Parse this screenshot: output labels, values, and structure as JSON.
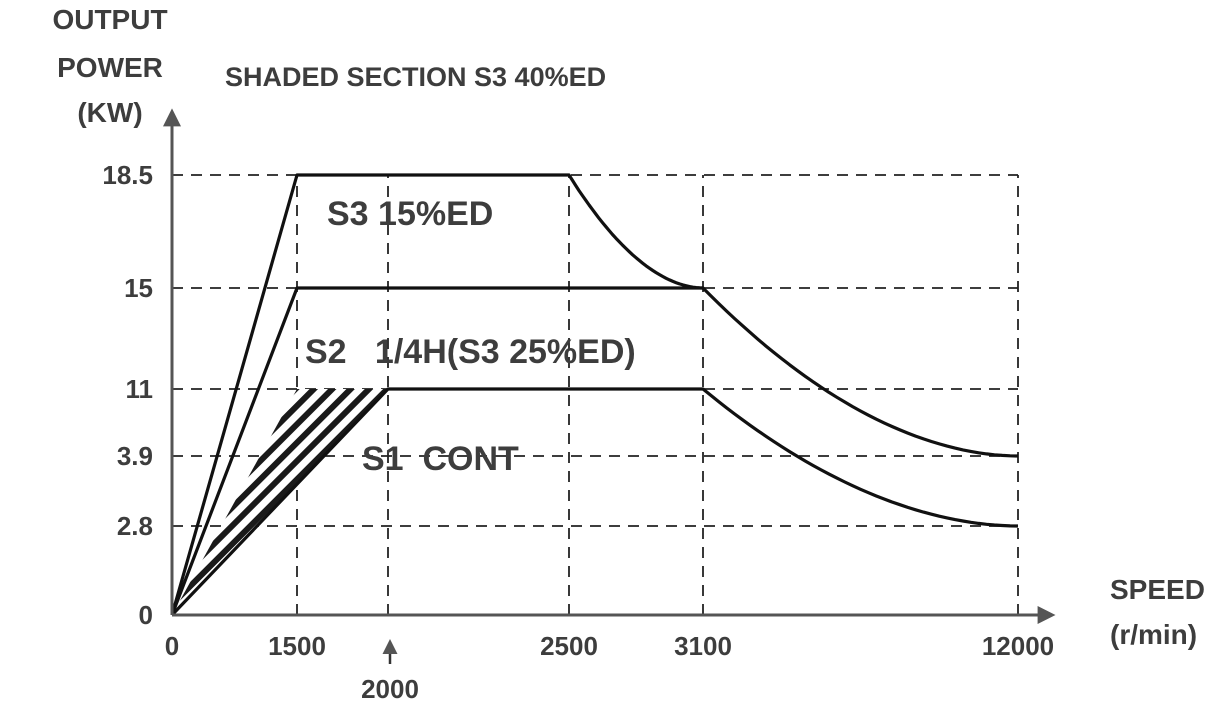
{
  "chart_data": {
    "type": "line",
    "title": "SHADED SECTION S3 40%ED",
    "ylabel_lines": [
      "OUTPUT",
      "POWER",
      "(KW)"
    ],
    "xlabel_lines": [
      "SPEED",
      "(r/min)"
    ],
    "x_ticks": [
      "0",
      "1500",
      "2500",
      "3100",
      "12000"
    ],
    "x_annotation": "2000",
    "y_ticks": [
      "0",
      "2.8",
      "3.9",
      "11",
      "15",
      "18.5"
    ],
    "series": [
      {
        "name": "S3 15%ED",
        "points": [
          [
            0,
            0
          ],
          [
            1500,
            18.5
          ],
          [
            2500,
            18.5
          ],
          [
            3100,
            15
          ],
          [
            12000,
            3.9
          ]
        ]
      },
      {
        "name": "S2   1/4H(S3 25%ED)",
        "points": [
          [
            0,
            0
          ],
          [
            1500,
            15
          ],
          [
            3100,
            15
          ]
        ]
      },
      {
        "name": "S1  CONT",
        "points": [
          [
            0,
            0
          ],
          [
            2000,
            11
          ],
          [
            3100,
            11
          ],
          [
            12000,
            2.8
          ]
        ]
      }
    ],
    "shaded_region": {
      "label": "S3 40%ED",
      "points": [
        [
          0,
          0
        ],
        [
          1500,
          11
        ],
        [
          2000,
          11
        ]
      ]
    },
    "guides": {
      "x": [
        "1500",
        "2000",
        "2500",
        "3100",
        "12000"
      ],
      "y": [
        "2.8",
        "3.9",
        "11",
        "15",
        "18.5"
      ]
    },
    "colors": {
      "curve": "#111111",
      "text": "#3d3d3d",
      "axis": "#555555"
    }
  }
}
